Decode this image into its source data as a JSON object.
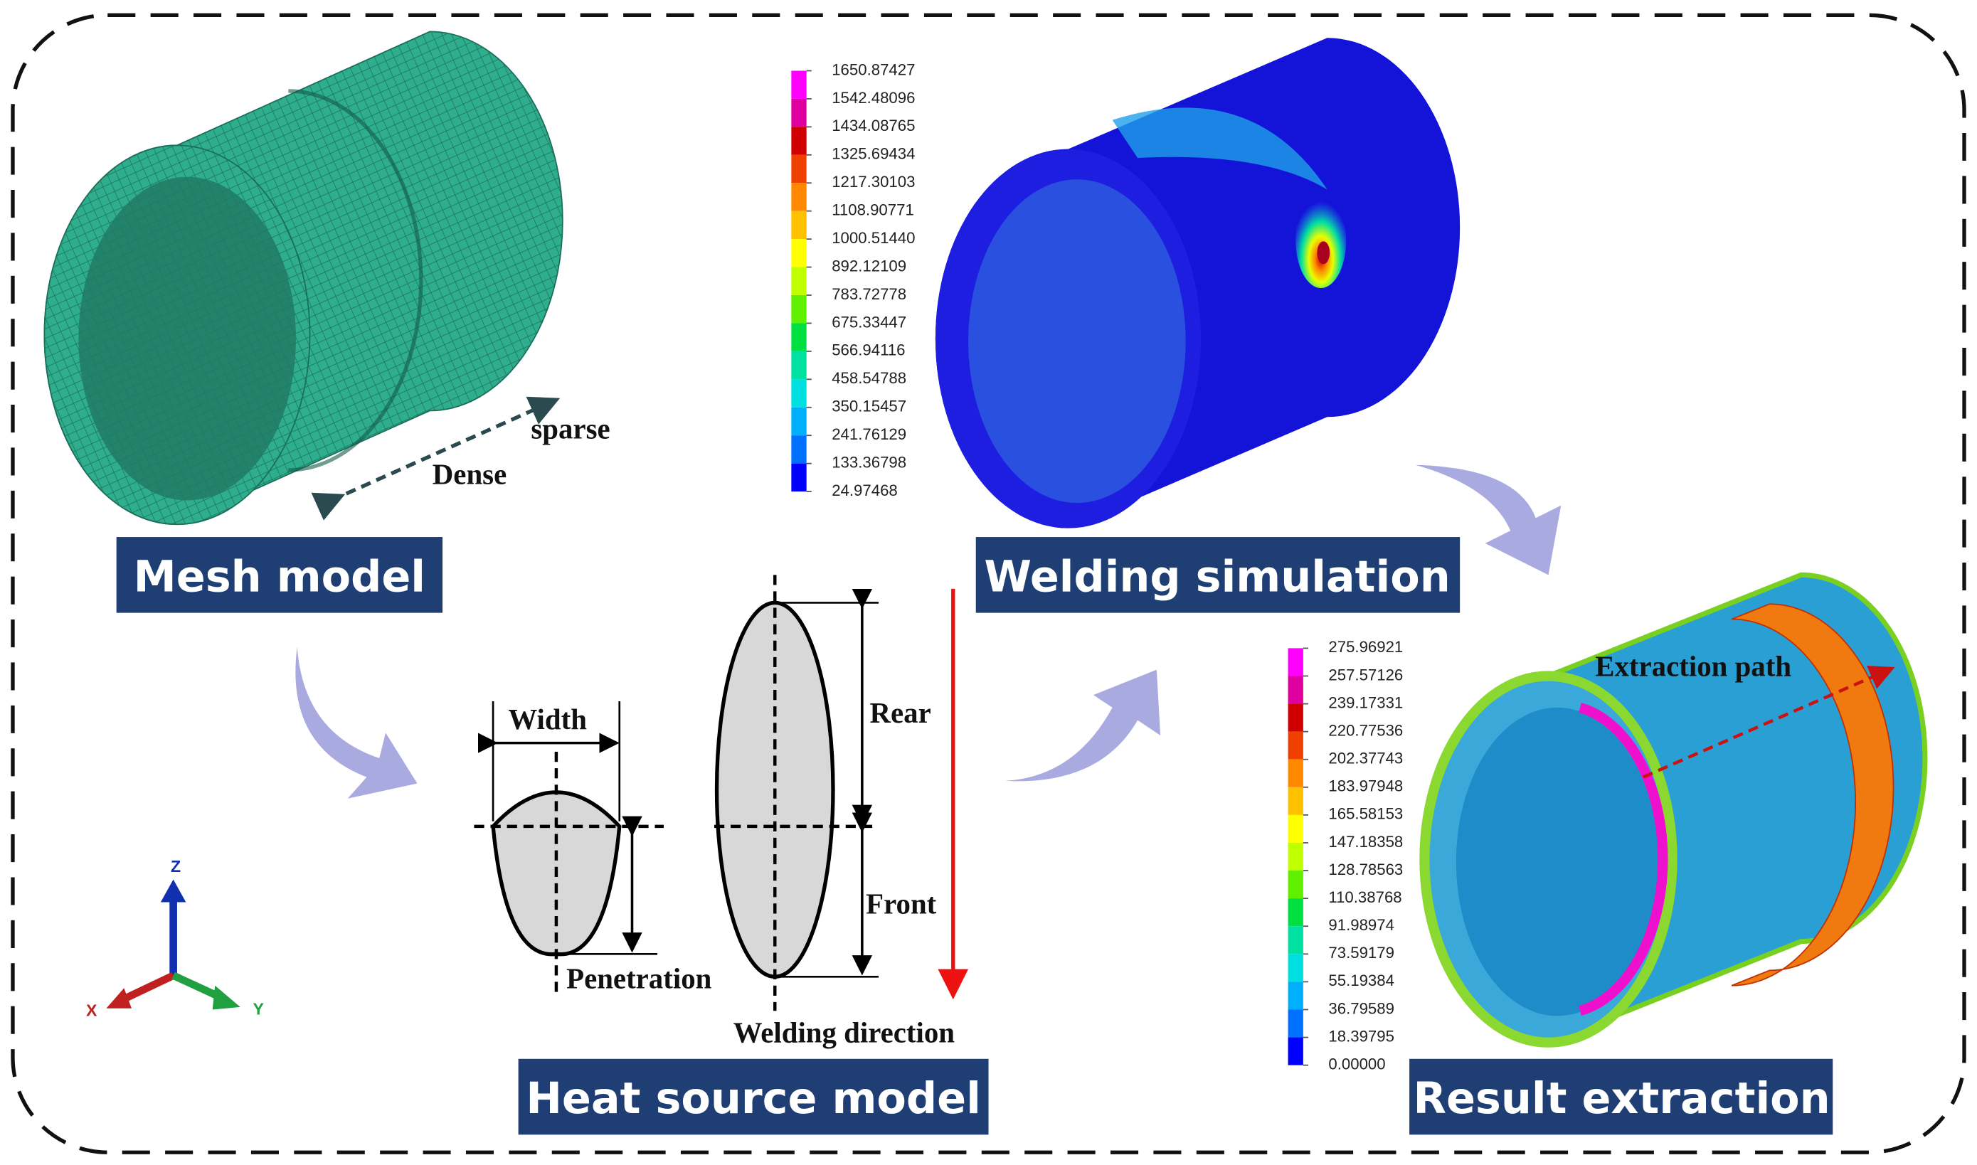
{
  "mesh_model": {
    "title": "Mesh model",
    "sparse": "sparse",
    "dense": "Dense"
  },
  "axes_triad": {
    "z": "Z",
    "x": "X",
    "y": "Y"
  },
  "heat_source_model": {
    "title": "Heat source model",
    "width": "Width",
    "penetration": "Penetration",
    "rear": "Rear",
    "front": "Front",
    "welding_direction": "Welding direction"
  },
  "welding_simulation": {
    "title": "Welding simulation",
    "legend": [
      "1650.87427",
      "1542.48096",
      "1434.08765",
      "1325.69434",
      "1217.30103",
      "1108.90771",
      "1000.51440",
      "892.12109",
      "783.72778",
      "675.33447",
      "566.94116",
      "458.54788",
      "350.15457",
      "241.76129",
      "133.36798",
      "24.97468"
    ]
  },
  "result_extraction": {
    "title": "Result extraction",
    "path_label": "Extraction path",
    "legend": [
      "275.96921",
      "257.57126",
      "239.17331",
      "220.77536",
      "202.37743",
      "183.97948",
      "165.58153",
      "147.18358",
      "128.78563",
      "110.38768",
      "91.98974",
      "73.59179",
      "55.19384",
      "36.79589",
      "18.39795",
      "0.00000"
    ]
  }
}
